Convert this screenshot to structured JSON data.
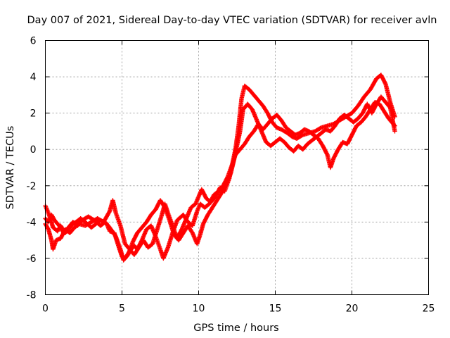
{
  "chart_data": {
    "type": "scatter",
    "title": "Day 007 of 2021, Sidereal Day-to-day VTEC variation (SDTVAR) for receiver avln",
    "xlabel": "GPS time / hours",
    "ylabel": "SDTVAR / TECUs",
    "xlim": [
      0,
      25
    ],
    "ylim": [
      -8,
      6
    ],
    "xticks": [
      0,
      5,
      10,
      15,
      20,
      25
    ],
    "yticks": [
      -8,
      -6,
      -4,
      -2,
      0,
      2,
      4,
      6
    ],
    "xtick_labels": [
      "0",
      "5",
      "10",
      "15",
      "20",
      "25"
    ],
    "ytick_labels": [
      "-8",
      "-6",
      "-4",
      "-2",
      "0",
      "2",
      "4",
      "6"
    ],
    "grid": true,
    "marker": "plus",
    "series": [
      {
        "name": "SDTVAR",
        "color": "#ff0000",
        "tracks": [
          [
            [
              0.0,
              -3.1
            ],
            [
              0.2,
              -3.5
            ],
            [
              0.4,
              -4.0
            ],
            [
              0.5,
              -4.3
            ],
            [
              0.8,
              -4.5
            ],
            [
              1.0,
              -4.2
            ],
            [
              1.3,
              -4.6
            ],
            [
              1.5,
              -4.4
            ],
            [
              1.8,
              -4.1
            ],
            [
              2.0,
              -4.0
            ],
            [
              2.3,
              -3.8
            ],
            [
              2.6,
              -4.0
            ],
            [
              3.0,
              -4.3
            ],
            [
              3.3,
              -4.1
            ],
            [
              3.6,
              -3.9
            ],
            [
              4.0,
              -4.1
            ],
            [
              4.2,
              -4.5
            ],
            [
              4.5,
              -4.6
            ],
            [
              4.8,
              -5.4
            ],
            [
              5.0,
              -5.9
            ],
            [
              5.2,
              -6.0
            ],
            [
              5.5,
              -5.6
            ],
            [
              5.8,
              -5.3
            ],
            [
              6.0,
              -5.5
            ],
            [
              6.3,
              -5.0
            ],
            [
              6.6,
              -4.4
            ],
            [
              6.9,
              -4.2
            ],
            [
              7.2,
              -4.8
            ],
            [
              7.5,
              -5.5
            ],
            [
              7.7,
              -6.0
            ],
            [
              8.0,
              -5.4
            ],
            [
              8.3,
              -4.6
            ],
            [
              8.6,
              -3.9
            ],
            [
              9.0,
              -3.6
            ],
            [
              9.3,
              -4.0
            ],
            [
              9.6,
              -4.2
            ],
            [
              9.9,
              -3.4
            ],
            [
              10.1,
              -3.0
            ],
            [
              10.4,
              -3.2
            ],
            [
              10.7,
              -3.0
            ],
            [
              11.0,
              -2.5
            ],
            [
              11.3,
              -2.3
            ],
            [
              11.6,
              -2.0
            ],
            [
              11.9,
              -1.5
            ],
            [
              12.2,
              -0.8
            ],
            [
              12.4,
              0.0
            ],
            [
              12.6,
              1.2
            ],
            [
              12.8,
              2.8
            ],
            [
              13.0,
              3.5
            ],
            [
              13.3,
              3.3
            ],
            [
              13.6,
              3.0
            ],
            [
              13.9,
              2.7
            ],
            [
              14.2,
              2.4
            ],
            [
              14.5,
              2.0
            ],
            [
              14.8,
              1.5
            ],
            [
              15.1,
              1.2
            ],
            [
              15.4,
              1.1
            ],
            [
              15.8,
              0.9
            ],
            [
              16.1,
              0.7
            ],
            [
              16.4,
              0.6
            ],
            [
              16.8,
              0.8
            ],
            [
              17.2,
              0.9
            ],
            [
              17.6,
              1.0
            ],
            [
              18.0,
              1.2
            ],
            [
              18.4,
              1.3
            ],
            [
              18.8,
              1.4
            ],
            [
              19.2,
              1.6
            ],
            [
              19.6,
              1.8
            ],
            [
              20.0,
              2.0
            ],
            [
              20.4,
              2.4
            ],
            [
              20.8,
              2.9
            ],
            [
              21.2,
              3.3
            ],
            [
              21.6,
              3.9
            ],
            [
              21.9,
              4.1
            ],
            [
              22.2,
              3.6
            ],
            [
              22.5,
              2.6
            ],
            [
              22.8,
              1.8
            ]
          ],
          [
            [
              0.0,
              -3.8
            ],
            [
              0.2,
              -4.0
            ],
            [
              0.4,
              -3.6
            ],
            [
              0.6,
              -3.9
            ],
            [
              0.9,
              -4.2
            ],
            [
              1.2,
              -4.6
            ],
            [
              1.5,
              -4.3
            ],
            [
              1.8,
              -4.0
            ],
            [
              2.1,
              -4.2
            ],
            [
              2.4,
              -3.9
            ],
            [
              2.8,
              -3.7
            ],
            [
              3.2,
              -3.9
            ],
            [
              3.6,
              -4.2
            ],
            [
              3.9,
              -4.0
            ],
            [
              4.2,
              -4.3
            ],
            [
              4.6,
              -4.8
            ],
            [
              4.9,
              -5.5
            ],
            [
              5.1,
              -6.1
            ],
            [
              5.4,
              -5.8
            ],
            [
              5.7,
              -5.1
            ],
            [
              6.0,
              -4.6
            ],
            [
              6.3,
              -4.3
            ],
            [
              6.6,
              -4.0
            ],
            [
              6.9,
              -3.6
            ],
            [
              7.2,
              -3.3
            ],
            [
              7.5,
              -2.8
            ],
            [
              7.8,
              -3.2
            ],
            [
              8.1,
              -3.9
            ],
            [
              8.4,
              -4.7
            ],
            [
              8.7,
              -5.0
            ],
            [
              9.0,
              -4.6
            ],
            [
              9.3,
              -4.2
            ],
            [
              9.6,
              -4.6
            ],
            [
              9.9,
              -5.2
            ],
            [
              10.1,
              -4.7
            ],
            [
              10.3,
              -4.1
            ],
            [
              10.6,
              -3.6
            ],
            [
              10.9,
              -3.2
            ],
            [
              11.2,
              -2.8
            ],
            [
              11.5,
              -2.4
            ],
            [
              11.8,
              -1.9
            ],
            [
              12.1,
              -1.3
            ],
            [
              12.3,
              -0.6
            ],
            [
              12.5,
              0.2
            ],
            [
              12.7,
              1.0
            ],
            [
              12.9,
              2.2
            ],
            [
              13.2,
              2.5
            ],
            [
              13.5,
              2.2
            ],
            [
              13.8,
              1.6
            ],
            [
              14.1,
              1.0
            ],
            [
              14.4,
              0.4
            ],
            [
              14.7,
              0.2
            ],
            [
              15.0,
              0.4
            ],
            [
              15.3,
              0.6
            ],
            [
              15.6,
              0.4
            ],
            [
              15.9,
              0.1
            ],
            [
              16.2,
              -0.1
            ],
            [
              16.5,
              0.2
            ],
            [
              16.8,
              0.0
            ],
            [
              17.1,
              0.3
            ],
            [
              17.4,
              0.5
            ],
            [
              17.7,
              0.7
            ],
            [
              18.0,
              0.9
            ],
            [
              18.3,
              1.1
            ],
            [
              18.6,
              1.0
            ],
            [
              18.9,
              1.3
            ],
            [
              19.2,
              1.7
            ],
            [
              19.5,
              1.9
            ],
            [
              19.8,
              1.7
            ],
            [
              20.1,
              1.5
            ],
            [
              20.4,
              1.7
            ],
            [
              20.7,
              2.0
            ],
            [
              21.0,
              2.5
            ],
            [
              21.3,
              2.0
            ],
            [
              21.6,
              2.5
            ],
            [
              21.9,
              2.9
            ],
            [
              22.2,
              2.6
            ],
            [
              22.5,
              2.3
            ],
            [
              22.8,
              1.0
            ]
          ],
          [
            [
              0.0,
              -4.1
            ],
            [
              0.2,
              -4.4
            ],
            [
              0.4,
              -5.0
            ],
            [
              0.5,
              -5.5
            ],
            [
              0.7,
              -5.0
            ],
            [
              1.0,
              -4.9
            ],
            [
              1.3,
              -4.4
            ],
            [
              1.6,
              -4.6
            ],
            [
              1.9,
              -4.3
            ],
            [
              2.2,
              -4.1
            ],
            [
              2.6,
              -4.2
            ],
            [
              3.0,
              -4.0
            ],
            [
              3.4,
              -3.8
            ],
            [
              3.8,
              -4.0
            ],
            [
              4.2,
              -3.4
            ],
            [
              4.4,
              -2.8
            ],
            [
              4.6,
              -3.5
            ],
            [
              4.9,
              -4.2
            ],
            [
              5.2,
              -5.2
            ],
            [
              5.5,
              -5.5
            ],
            [
              5.8,
              -5.8
            ],
            [
              6.1,
              -5.4
            ],
            [
              6.4,
              -5.0
            ],
            [
              6.7,
              -5.4
            ],
            [
              7.0,
              -5.2
            ],
            [
              7.3,
              -4.4
            ],
            [
              7.6,
              -3.6
            ],
            [
              7.8,
              -3.0
            ],
            [
              8.0,
              -3.5
            ],
            [
              8.3,
              -4.2
            ],
            [
              8.6,
              -4.9
            ],
            [
              8.9,
              -4.4
            ],
            [
              9.2,
              -3.8
            ],
            [
              9.5,
              -3.2
            ],
            [
              9.8,
              -3.0
            ],
            [
              10.0,
              -2.6
            ],
            [
              10.2,
              -2.2
            ],
            [
              10.5,
              -2.7
            ],
            [
              10.8,
              -2.9
            ],
            [
              11.1,
              -2.6
            ],
            [
              11.4,
              -2.1
            ],
            [
              11.7,
              -2.3
            ],
            [
              12.0,
              -1.6
            ],
            [
              12.2,
              -0.8
            ],
            [
              12.4,
              -0.3
            ],
            [
              12.6,
              -0.1
            ],
            [
              12.8,
              0.1
            ],
            [
              13.0,
              0.3
            ],
            [
              13.3,
              0.7
            ],
            [
              13.6,
              1.0
            ],
            [
              13.9,
              1.4
            ],
            [
              14.2,
              1.1
            ],
            [
              14.5,
              1.4
            ],
            [
              14.8,
              1.7
            ],
            [
              15.1,
              1.9
            ],
            [
              15.4,
              1.6
            ],
            [
              15.7,
              1.2
            ],
            [
              16.0,
              1.0
            ],
            [
              16.3,
              0.8
            ],
            [
              16.6,
              0.9
            ],
            [
              16.9,
              1.1
            ],
            [
              17.2,
              1.0
            ],
            [
              17.5,
              0.8
            ],
            [
              17.8,
              0.6
            ],
            [
              18.1,
              0.2
            ],
            [
              18.4,
              -0.3
            ],
            [
              18.6,
              -1.0
            ],
            [
              18.8,
              -0.5
            ],
            [
              19.1,
              0.0
            ],
            [
              19.4,
              0.4
            ],
            [
              19.7,
              0.3
            ],
            [
              20.0,
              0.8
            ],
            [
              20.3,
              1.3
            ],
            [
              20.6,
              1.5
            ],
            [
              20.9,
              1.8
            ],
            [
              21.2,
              2.2
            ],
            [
              21.5,
              2.6
            ],
            [
              21.8,
              2.5
            ],
            [
              22.1,
              2.1
            ],
            [
              22.4,
              1.7
            ],
            [
              22.8,
              1.3
            ]
          ]
        ]
      }
    ]
  }
}
